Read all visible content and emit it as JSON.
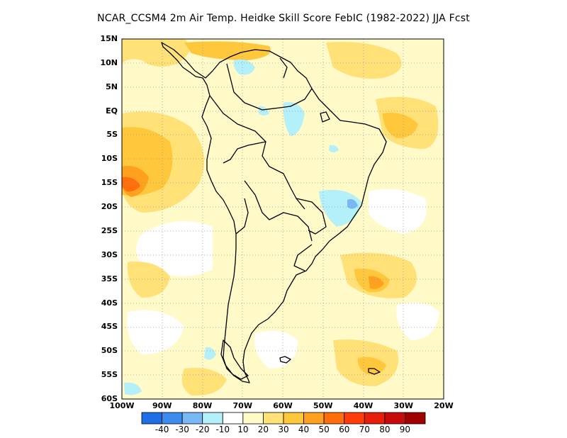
{
  "title": "NCAR_CCSM4  2m Air Temp. Heidke Skill Score FebIC (1982-2022) JJA Fcst",
  "axes": {
    "lat_labels": [
      "15N",
      "10N",
      "5N",
      "EQ",
      "5S",
      "10S",
      "15S",
      "20S",
      "25S",
      "30S",
      "35S",
      "40S",
      "45S",
      "50S",
      "55S",
      "60S"
    ],
    "lon_labels": [
      "100W",
      "90W",
      "80W",
      "70W",
      "60W",
      "50W",
      "40W",
      "30W",
      "20W"
    ]
  },
  "map": {
    "region": "South America",
    "lon_range": [
      -100,
      -20
    ],
    "lat_range": [
      -60,
      15
    ],
    "grid": "dotted",
    "colors": {
      "land_outline": "#000000",
      "grid": "#9a9a9a"
    }
  },
  "colorbar": {
    "colors": [
      "#1e6ee6",
      "#3c8cf0",
      "#78b9f5",
      "#b4f0fa",
      "#ffffff",
      "#fffac8",
      "#ffe178",
      "#ffc83c",
      "#ffa01e",
      "#ff6e0a",
      "#ff3c0a",
      "#e61e0a",
      "#c80a0a",
      "#a00000"
    ],
    "labels": [
      "-40",
      "-30",
      "-20",
      "-10",
      "10",
      "20",
      "30",
      "40",
      "50",
      "60",
      "70",
      "80",
      "90"
    ]
  }
}
